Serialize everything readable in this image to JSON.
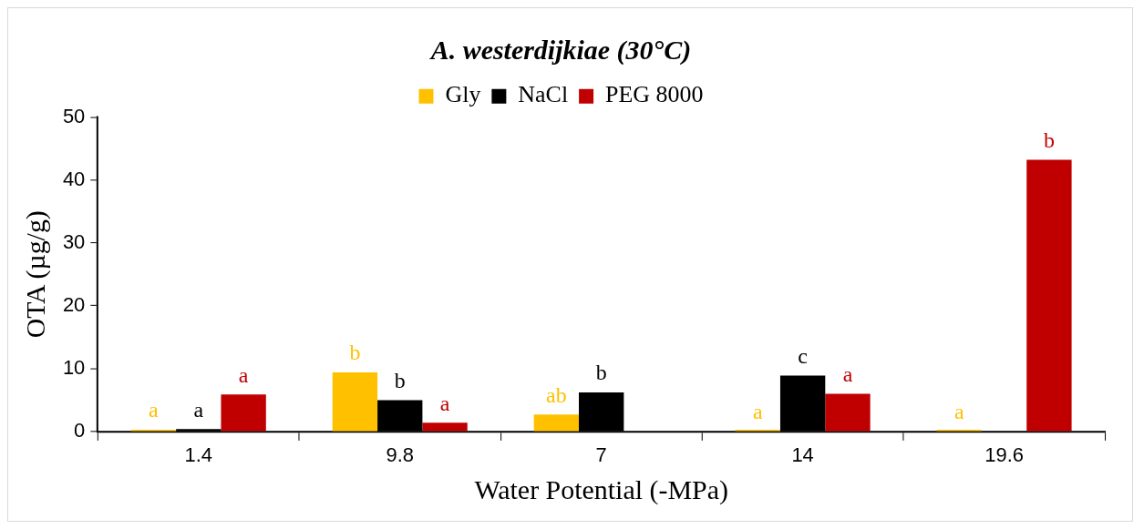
{
  "chart_data": {
    "type": "bar",
    "title": "A. westerdijkiae (30°C)",
    "xlabel": "Water Potential (-MPa)",
    "ylabel": "OTA (µg/g)",
    "categories": [
      "1.4",
      "9.8",
      "7",
      "14",
      "19.6"
    ],
    "series": [
      {
        "name": "Gly",
        "color": "#ffc000",
        "values": [
          0.3,
          9.4,
          2.7,
          0.1,
          0
        ],
        "value_labels": [
          "a",
          "b",
          "ab",
          "a",
          "a"
        ]
      },
      {
        "name": "NaCl",
        "color": "#000000",
        "values": [
          0.4,
          5.0,
          6.2,
          8.9,
          null
        ],
        "value_labels": [
          "a",
          "b",
          "b",
          "c",
          null
        ]
      },
      {
        "name": "PEG 8000",
        "color": "#c00000",
        "values": [
          5.9,
          1.4,
          null,
          6.0,
          43.2
        ],
        "value_labels": [
          "a",
          "a",
          null,
          "a",
          "b"
        ]
      }
    ],
    "ylim": [
      0,
      50
    ],
    "yticks": [
      0,
      10,
      20,
      30,
      40,
      50
    ],
    "grid": false,
    "legend": "top"
  }
}
